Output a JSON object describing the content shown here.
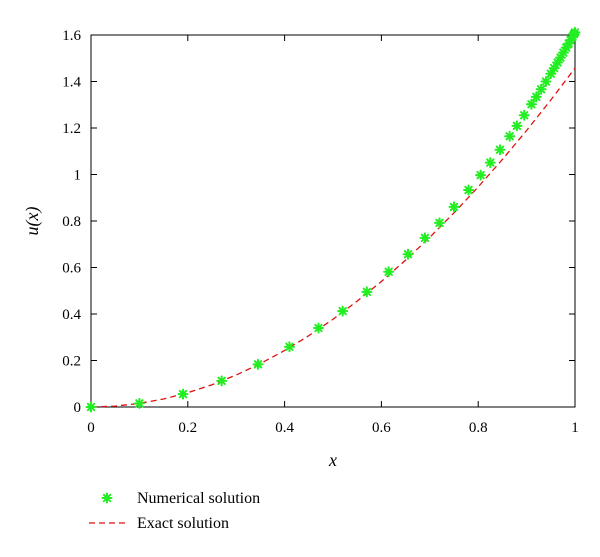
{
  "chart_data": {
    "type": "line",
    "xlabel": "x",
    "ylabel": "u(x)",
    "xlim": [
      0,
      1
    ],
    "ylim": [
      0,
      1.6
    ],
    "xticks": [
      "0",
      "0.2",
      "0.4",
      "0.6",
      "0.8",
      "1"
    ],
    "yticks": [
      "0",
      "0.2",
      "0.4",
      "0.6",
      "0.8",
      "1",
      "1.2",
      "1.4",
      "1.6"
    ],
    "grid": false,
    "legend_position": "bottom-left, outside plot",
    "series": [
      {
        "name": "Numerical solution",
        "style": "markers",
        "marker": "asterisk",
        "color": "#22ee22",
        "x": [
          0.0,
          0.1,
          0.19,
          0.27,
          0.345,
          0.41,
          0.47,
          0.52,
          0.57,
          0.615,
          0.655,
          0.69,
          0.72,
          0.75,
          0.78,
          0.805,
          0.825,
          0.845,
          0.865,
          0.88,
          0.895,
          0.91,
          0.92,
          0.93,
          0.94,
          0.95,
          0.957,
          0.964,
          0.97,
          0.976,
          0.982,
          0.987,
          0.991,
          0.995,
          0.998,
          1.0
        ],
        "y": [
          0.0,
          0.0154,
          0.0556,
          0.1123,
          0.1836,
          0.2593,
          0.3397,
          0.4122,
          0.4952,
          0.5819,
          0.6568,
          0.7273,
          0.792,
          0.8605,
          0.9331,
          0.9974,
          1.051,
          1.1066,
          1.1644,
          1.209,
          1.2549,
          1.3021,
          1.3341,
          1.3667,
          1.3999,
          1.4336,
          1.4575,
          1.4817,
          1.5027,
          1.524,
          1.5455,
          1.5636,
          1.5782,
          1.5928,
          1.6039,
          1.6112
        ]
      },
      {
        "name": "Exact solution",
        "style": "dashed",
        "color": "#dd1111",
        "x": [
          0.0,
          0.05,
          0.1,
          0.15,
          0.2,
          0.25,
          0.3,
          0.35,
          0.4,
          0.45,
          0.5,
          0.55,
          0.6,
          0.65,
          0.7,
          0.75,
          0.8,
          0.85,
          0.9,
          0.95,
          1.0
        ],
        "y": [
          0.0,
          0.0039,
          0.0154,
          0.0346,
          0.0614,
          0.0958,
          0.1375,
          0.1867,
          0.2431,
          0.3067,
          0.3775,
          0.4553,
          0.54,
          0.6316,
          0.73,
          0.835,
          0.9466,
          1.0647,
          1.1893,
          1.3203,
          1.4577
        ]
      }
    ]
  }
}
